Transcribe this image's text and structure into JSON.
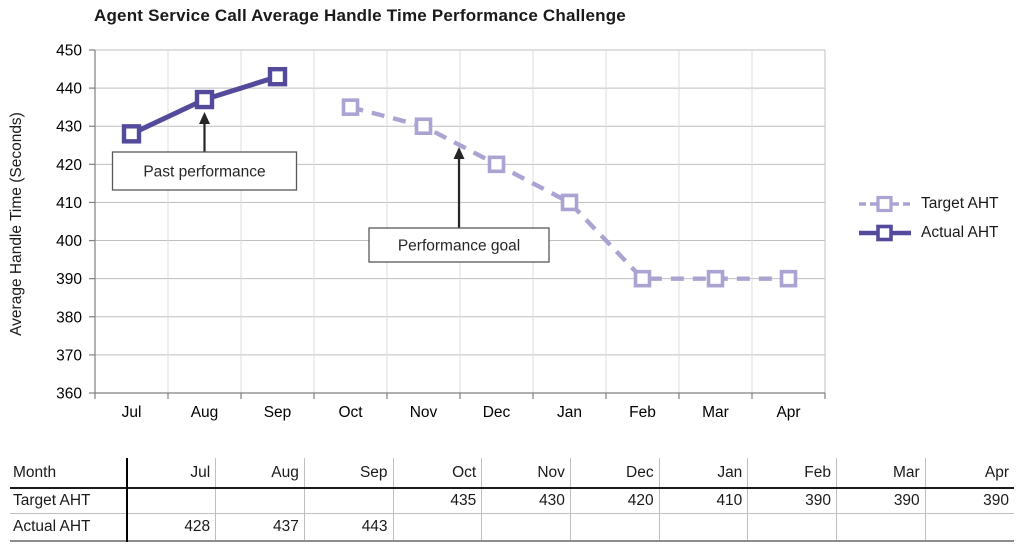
{
  "chart_data": {
    "type": "line",
    "title": "Agent Service Call Average Handle Time Performance Challenge",
    "xlabel": "",
    "ylabel": "Average Handle Time (Seconds)",
    "ylim": [
      360,
      450
    ],
    "yticks": [
      360,
      370,
      380,
      390,
      400,
      410,
      420,
      430,
      440,
      450
    ],
    "grid": true,
    "legend_position": "right",
    "categories": [
      "Jul",
      "Aug",
      "Sep",
      "Oct",
      "Nov",
      "Dec",
      "Jan",
      "Feb",
      "Mar",
      "Apr"
    ],
    "series": [
      {
        "name": "Target AHT",
        "style": "dashed",
        "color": "#ABA3D2",
        "marker": "square",
        "values": [
          null,
          null,
          null,
          435,
          430,
          420,
          410,
          390,
          390,
          390
        ]
      },
      {
        "name": "Actual AHT",
        "style": "solid",
        "color": "#544A9B",
        "marker": "square",
        "values": [
          428,
          437,
          443,
          null,
          null,
          null,
          null,
          null,
          null,
          null
        ]
      }
    ],
    "annotations": [
      {
        "text": "Past performance",
        "points_to": "Actual AHT at Aug"
      },
      {
        "text": "Performance goal",
        "points_to": "Target AHT between Nov and Dec"
      }
    ]
  },
  "table": {
    "header_label": "Month",
    "months": [
      "Jul",
      "Aug",
      "Sep",
      "Oct",
      "Nov",
      "Dec",
      "Jan",
      "Feb",
      "Mar",
      "Apr"
    ],
    "rows": [
      {
        "label": "Target AHT",
        "values": [
          "",
          "",
          "",
          "435",
          "430",
          "420",
          "410",
          "390",
          "390",
          "390"
        ]
      },
      {
        "label": "Actual AHT",
        "values": [
          "428",
          "437",
          "443",
          "",
          "",
          "",
          "",
          "",
          "",
          ""
        ]
      }
    ]
  }
}
